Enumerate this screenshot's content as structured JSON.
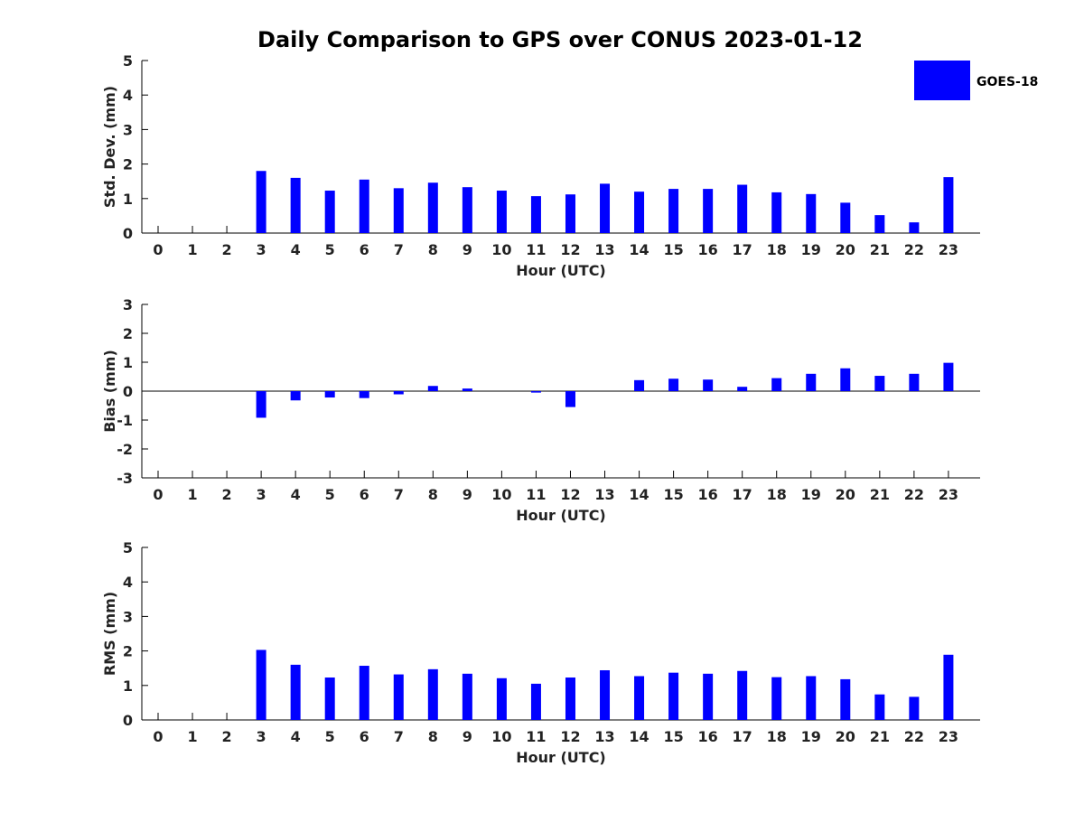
{
  "figure": {
    "title": "Daily Comparison to GPS over CONUS 2023-01-12"
  },
  "legend": {
    "label": "GOES-18",
    "color": "#0000ff",
    "placement": "top-right"
  },
  "chart_data": [
    {
      "type": "bar",
      "xlabel": "Hour (UTC)",
      "ylabel": "Std. Dev. (mm)",
      "ylim": [
        0,
        5
      ],
      "yticks": [
        0,
        1,
        2,
        3,
        4,
        5
      ],
      "categories": [
        0,
        1,
        2,
        3,
        4,
        5,
        6,
        7,
        8,
        9,
        10,
        11,
        12,
        13,
        14,
        15,
        16,
        17,
        18,
        19,
        20,
        21,
        22,
        23
      ],
      "series": [
        {
          "name": "GOES-18",
          "color": "#0000ff",
          "values": [
            null,
            null,
            null,
            1.8,
            1.6,
            1.23,
            1.55,
            1.3,
            1.46,
            1.33,
            1.23,
            1.07,
            1.12,
            1.43,
            1.2,
            1.28,
            1.28,
            1.4,
            1.18,
            1.13,
            0.88,
            0.52,
            0.31,
            1.62
          ]
        }
      ]
    },
    {
      "type": "bar",
      "xlabel": "Hour (UTC)",
      "ylabel": "Bias (mm)",
      "ylim": [
        -3,
        3
      ],
      "yticks": [
        -3,
        -2,
        -1,
        0,
        1,
        2,
        3
      ],
      "zero_line": true,
      "categories": [
        0,
        1,
        2,
        3,
        4,
        5,
        6,
        7,
        8,
        9,
        10,
        11,
        12,
        13,
        14,
        15,
        16,
        17,
        18,
        19,
        20,
        21,
        22,
        23
      ],
      "series": [
        {
          "name": "GOES-18",
          "color": "#0000ff",
          "values": [
            null,
            null,
            null,
            -0.92,
            -0.32,
            -0.22,
            -0.24,
            -0.11,
            0.18,
            0.09,
            0.0,
            -0.05,
            -0.55,
            null,
            0.38,
            0.43,
            0.4,
            0.15,
            0.45,
            0.6,
            0.79,
            0.53,
            0.6,
            0.98
          ]
        }
      ]
    },
    {
      "type": "bar",
      "xlabel": "Hour (UTC)",
      "ylabel": "RMS (mm)",
      "ylim": [
        0,
        5
      ],
      "yticks": [
        0,
        1,
        2,
        3,
        4,
        5
      ],
      "categories": [
        0,
        1,
        2,
        3,
        4,
        5,
        6,
        7,
        8,
        9,
        10,
        11,
        12,
        13,
        14,
        15,
        16,
        17,
        18,
        19,
        20,
        21,
        22,
        23
      ],
      "series": [
        {
          "name": "GOES-18",
          "color": "#0000ff",
          "values": [
            null,
            null,
            null,
            2.03,
            1.6,
            1.23,
            1.57,
            1.32,
            1.47,
            1.34,
            1.21,
            1.05,
            1.23,
            1.44,
            1.27,
            1.37,
            1.34,
            1.42,
            1.24,
            1.27,
            1.18,
            0.74,
            0.67,
            1.89
          ]
        }
      ]
    }
  ]
}
